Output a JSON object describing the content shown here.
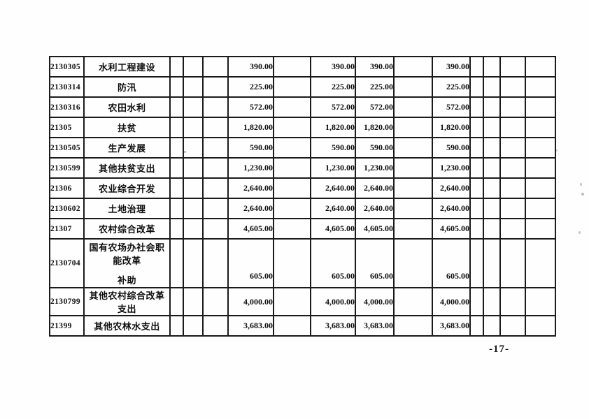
{
  "page": {
    "number_label": "-17-"
  },
  "colors": {
    "ink": "#1a1a1a",
    "paper": "#fefefe"
  },
  "table": {
    "value_columns": 4,
    "rows": [
      {
        "code": "2130305",
        "name": "水利工程建设",
        "values": [
          "390.00",
          "390.00",
          "390.00",
          "390.00"
        ]
      },
      {
        "code": "2130314",
        "name": "防汛",
        "values": [
          "225.00",
          "225.00",
          "225.00",
          "225.00"
        ]
      },
      {
        "code": "2130316",
        "name": "农田水利",
        "values": [
          "572.00",
          "572.00",
          "572.00",
          "572.00"
        ]
      },
      {
        "code": "21305",
        "name": "扶贫",
        "values": [
          "1,820.00",
          "1,820.00",
          "1,820.00",
          "1,820.00"
        ]
      },
      {
        "code": "2130505",
        "name": "生产发展",
        "values": [
          "590.00",
          "590.00",
          "590.00",
          "590.00"
        ]
      },
      {
        "code": "2130599",
        "name": "其他扶贫支出",
        "values": [
          "1,230.00",
          "1,230.00",
          "1,230.00",
          "1,230.00"
        ]
      },
      {
        "code": "21306",
        "name": "农业综合开发",
        "values": [
          "2,640.00",
          "2,640.00",
          "2,640.00",
          "2,640.00"
        ]
      },
      {
        "code": "2130602",
        "name": "土地治理",
        "values": [
          "2,640.00",
          "2,640.00",
          "2,640.00",
          "2,640.00"
        ]
      },
      {
        "code": "21307",
        "name": "农村综合改革",
        "values": [
          "4,605.00",
          "4,605.00",
          "4,605.00",
          "4,605.00"
        ]
      },
      {
        "code": "2130704",
        "name": "国有农场办社会职能改革",
        "name_line2": "补助",
        "values": [
          "605.00",
          "605.00",
          "605.00",
          "605.00"
        ]
      },
      {
        "code": "2130799",
        "name": "其他农村综合改革支出",
        "values": [
          "4,000.00",
          "4,000.00",
          "4,000.00",
          "4,000.00"
        ]
      },
      {
        "code": "21399",
        "name": "其他农林水支出",
        "values": [
          "3,683.00",
          "3,683.00",
          "3,683.00",
          "3,683.00"
        ]
      }
    ]
  }
}
